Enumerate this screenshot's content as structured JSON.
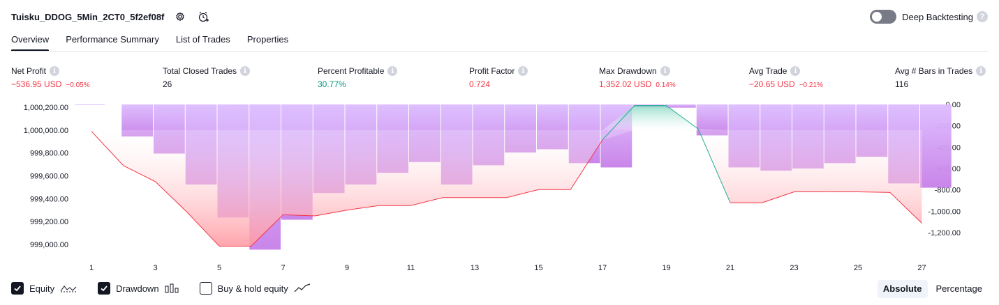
{
  "header": {
    "strategy_name": "Tuisku_DDOG_5Min_2CT0_5f2ef08f",
    "deep_backtesting_label": "Deep Backtesting",
    "deep_backtesting_enabled": false,
    "help_glyph": "?"
  },
  "tabs": [
    {
      "label": "Overview",
      "active": true
    },
    {
      "label": "Performance Summary",
      "active": false
    },
    {
      "label": "List of Trades",
      "active": false
    },
    {
      "label": "Properties",
      "active": false
    }
  ],
  "metrics": {
    "info_glyph": "i",
    "net_profit": {
      "label": "Net Profit",
      "value": "−536.95 USD",
      "pct": "−0.05%"
    },
    "total_closed_trades": {
      "label": "Total Closed Trades",
      "value": "26"
    },
    "percent_profitable": {
      "label": "Percent Profitable",
      "value": "30.77%"
    },
    "profit_factor": {
      "label": "Profit Factor",
      "value": "0.724"
    },
    "max_drawdown": {
      "label": "Max Drawdown",
      "value": "1,352.02 USD",
      "pct": "0.14%"
    },
    "avg_trade": {
      "label": "Avg Trade",
      "value": "−20.65 USD",
      "pct": "−0.21%"
    },
    "avg_bars": {
      "label": "Avg # Bars in Trades",
      "value": "116"
    }
  },
  "chart_data": {
    "type": "line",
    "equity": {
      "x": [
        1,
        2,
        3,
        4,
        5,
        6,
        7,
        8,
        9,
        10,
        11,
        12,
        13,
        14,
        15,
        16,
        17,
        18,
        19,
        20,
        21,
        22,
        23,
        24,
        25,
        26,
        27
      ],
      "y": [
        999990,
        999690,
        999550,
        999280,
        998985,
        998985,
        999260,
        999250,
        999300,
        999340,
        999340,
        999410,
        999410,
        999410,
        999480,
        999480,
        999915,
        1000215,
        1000215,
        1000010,
        999365,
        999365,
        999460,
        999460,
        999460,
        999455,
        999185
      ]
    },
    "drawdown_bars": {
      "x": [
        1,
        2,
        3,
        4,
        5,
        6,
        7,
        8,
        9,
        10,
        11,
        12,
        13,
        14,
        15,
        16,
        17,
        18,
        19,
        20,
        21,
        22,
        23,
        24,
        25,
        26,
        27
      ],
      "values": [
        -10,
        -300,
        -460,
        -750,
        -1060,
        -1360,
        -1080,
        -830,
        -750,
        -640,
        -540,
        -750,
        -570,
        -450,
        -420,
        -550,
        -590,
        -25,
        -30,
        -290,
        -590,
        -620,
        -600,
        -550,
        -490,
        -740,
        -780
      ]
    },
    "y_left_ticks": [
      "1,000,200.00",
      "1,000,000.00",
      "999,800.00",
      "999,600.00",
      "999,400.00",
      "999,200.00",
      "999,000.00"
    ],
    "y_left_lim": [
      998945,
      1000225
    ],
    "y_right_ticks": [
      "0.00",
      "-200.00",
      "-400.00",
      "-600.00",
      "-800.00",
      "-1,000.00",
      "-1,200.00"
    ],
    "y_right_lim": [
      -1370,
      0
    ],
    "x_ticks": [
      "1",
      "3",
      "5",
      "7",
      "9",
      "11",
      "13",
      "15",
      "17",
      "19",
      "21",
      "23",
      "25",
      "27"
    ],
    "colors": {
      "equity_loss": "#f23645",
      "equity_gain": "#22ab94",
      "fill_loss": "#ffb3b8",
      "fill_gain": "#b2e6d9",
      "drawdown_bar": "#ce93f0"
    },
    "grid": false
  },
  "legend": {
    "equity": {
      "label": "Equity",
      "checked": true
    },
    "drawdown": {
      "label": "Drawdown",
      "checked": true
    },
    "buyhold": {
      "label": "Buy & hold equity",
      "checked": false
    }
  },
  "mode": {
    "absolute_label": "Absolute",
    "percentage_label": "Percentage",
    "active": "absolute"
  }
}
